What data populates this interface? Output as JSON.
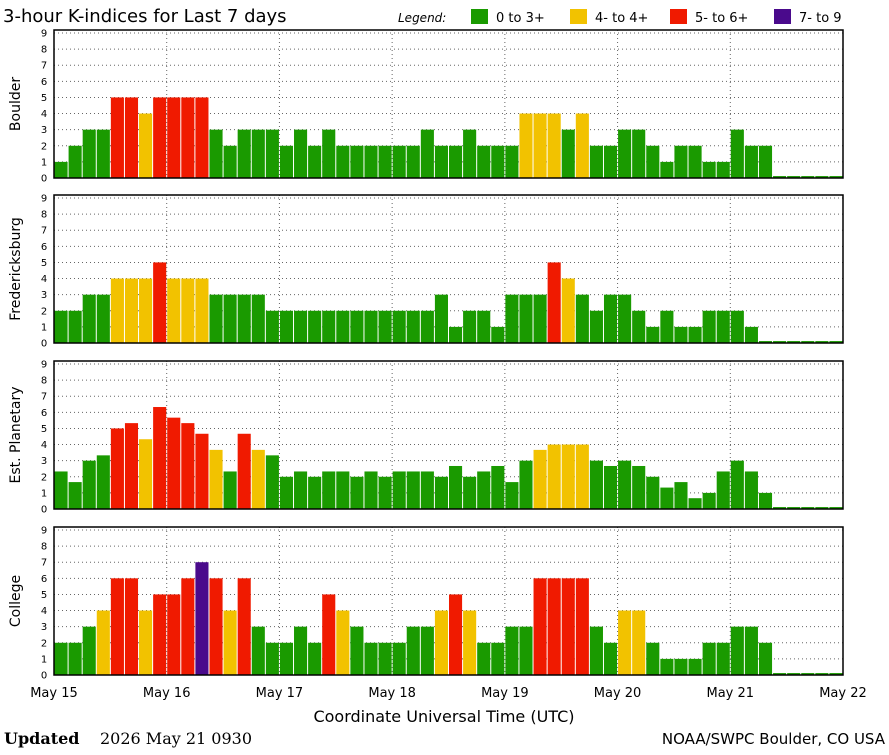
{
  "header": {
    "title": "3-hour K-indices for Last 7 days",
    "legend_label": "Legend:"
  },
  "legend": [
    {
      "label": "0 to 3+",
      "color": "#1a9a00"
    },
    {
      "label": "4- to 4+",
      "color": "#f2c200"
    },
    {
      "label": "5- to 6+",
      "color": "#f01a00"
    },
    {
      "label": "7- to 9",
      "color": "#4a0a8c"
    }
  ],
  "footer": {
    "updated_label": "Updated",
    "updated_value": "2026 May 21 0930",
    "source": "NOAA/SWPC Boulder, CO USA"
  },
  "chart_data": {
    "type": "bar",
    "xlabel": "Coordinate Universal Time (UTC)",
    "x_ticks": [
      "May 15",
      "May 16",
      "May 17",
      "May 18",
      "May 19",
      "May 20",
      "May 21",
      "May 22"
    ],
    "ylim": [
      0,
      9
    ],
    "y_ticks": [
      "0",
      "1",
      "2",
      "3",
      "4",
      "5",
      "6",
      "7",
      "8",
      "9"
    ],
    "grid": true,
    "bins_per_day": 8,
    "series": [
      {
        "name": "Boulder",
        "values": [
          1,
          2,
          3,
          3,
          5,
          5,
          4,
          5,
          5,
          5,
          5,
          3,
          2,
          3,
          3,
          3,
          2,
          3,
          2,
          3,
          2,
          2,
          2,
          2,
          2,
          2,
          3,
          2,
          2,
          3,
          2,
          2,
          2,
          4,
          4,
          4,
          3,
          4,
          2,
          2,
          3,
          3,
          2,
          1,
          2,
          2,
          1,
          1,
          3,
          2,
          2,
          0,
          0,
          0,
          0,
          0
        ]
      },
      {
        "name": "Fredericksburg",
        "values": [
          2,
          2,
          3,
          3,
          4,
          4,
          4,
          5,
          4,
          4,
          4,
          3,
          3,
          3,
          3,
          2,
          2,
          2,
          2,
          2,
          2,
          2,
          2,
          2,
          2,
          2,
          2,
          3,
          1,
          2,
          2,
          1,
          3,
          3,
          3,
          5,
          4,
          3,
          2,
          3,
          3,
          2,
          1,
          2,
          1,
          1,
          2,
          2,
          2,
          1,
          0,
          0,
          0,
          0,
          0,
          0
        ]
      },
      {
        "name": "Est. Planetary",
        "values": [
          2.33,
          1.67,
          3,
          3.33,
          5,
          5.33,
          4.33,
          6.33,
          5.67,
          5.33,
          4.67,
          3.67,
          2.33,
          4.67,
          3.67,
          3.33,
          2,
          2.33,
          2,
          2.33,
          2.33,
          2,
          2.33,
          2,
          2.33,
          2.33,
          2.33,
          2,
          2.67,
          2,
          2.33,
          2.67,
          1.67,
          3,
          3.67,
          4,
          4,
          4,
          3,
          2.67,
          3,
          2.67,
          2,
          1.33,
          1.67,
          0.67,
          1,
          2.33,
          3,
          2.33,
          1,
          0,
          0,
          0,
          0,
          0
        ]
      },
      {
        "name": "College",
        "values": [
          2,
          2,
          3,
          4,
          6,
          6,
          4,
          5,
          5,
          6,
          7,
          6,
          4,
          6,
          3,
          2,
          2,
          3,
          2,
          5,
          4,
          3,
          2,
          2,
          2,
          3,
          3,
          4,
          5,
          4,
          2,
          2,
          3,
          3,
          6,
          6,
          6,
          6,
          3,
          2,
          4,
          4,
          2,
          1,
          1,
          1,
          2,
          2,
          3,
          3,
          2,
          0,
          0,
          0,
          0,
          0
        ]
      }
    ]
  }
}
